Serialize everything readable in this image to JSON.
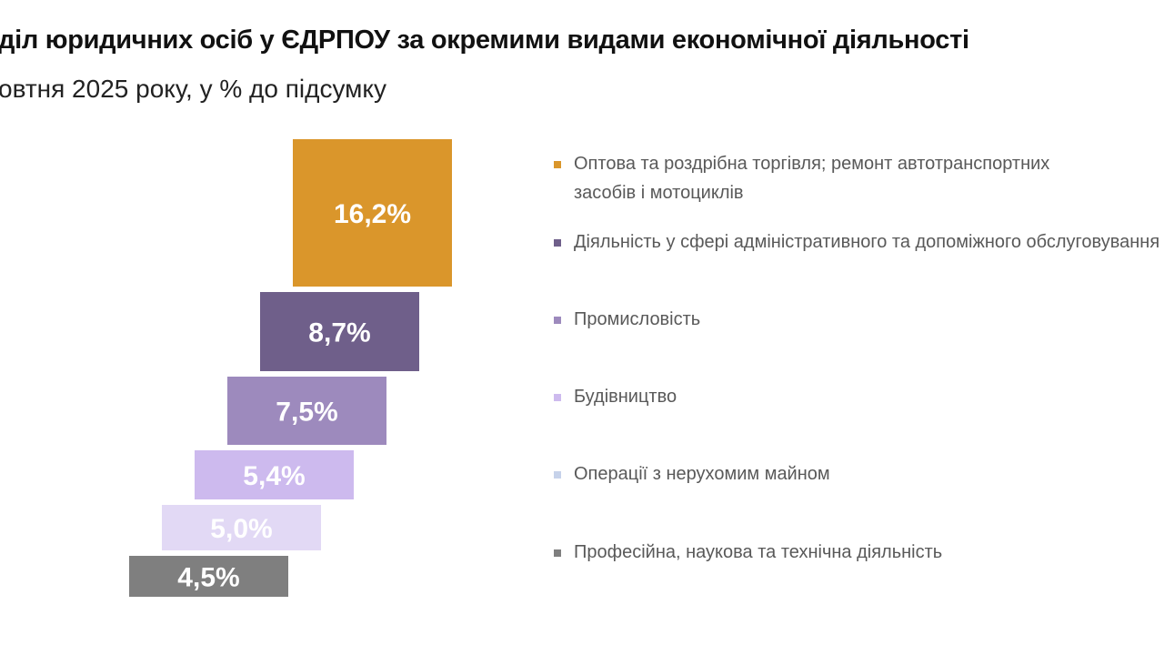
{
  "title": "діл юридичних осіб у ЄДРПОУ за окремими видами економічної діяльності",
  "subtitle": "овтня 2025 року, у % до підсумку",
  "chart_data": {
    "type": "bar",
    "orientation": "stepped",
    "categories": [
      "Оптова та роздрібна торгівля; ремонт автотранспортних засобів і мотоциклів",
      "Діяльність у сфері адміністративного та допоміжного обслуговування",
      "Промисловість",
      "Будівництво",
      "Операції з нерухомим майном",
      "Професійна, наукова та технічна діяльність"
    ],
    "values": [
      16.2,
      8.7,
      7.5,
      5.4,
      5.0,
      4.5
    ],
    "data_labels": [
      "16,2%",
      "8,7%",
      "7,5%",
      "5,4%",
      "5,0%",
      "4,5%"
    ],
    "colors": [
      "#DA962B",
      "#6F5F8A",
      "#9D8ABD",
      "#CDBAEE",
      "#E2D9F5",
      "#7F7F7F"
    ],
    "legend_colors": [
      "#DA962B",
      "#6F5F8A",
      "#9D8ABD",
      "#CDBAEE",
      "#C6D2EA",
      "#7F7F7F"
    ],
    "legend_position": "right",
    "grid": false,
    "unit": "%"
  }
}
